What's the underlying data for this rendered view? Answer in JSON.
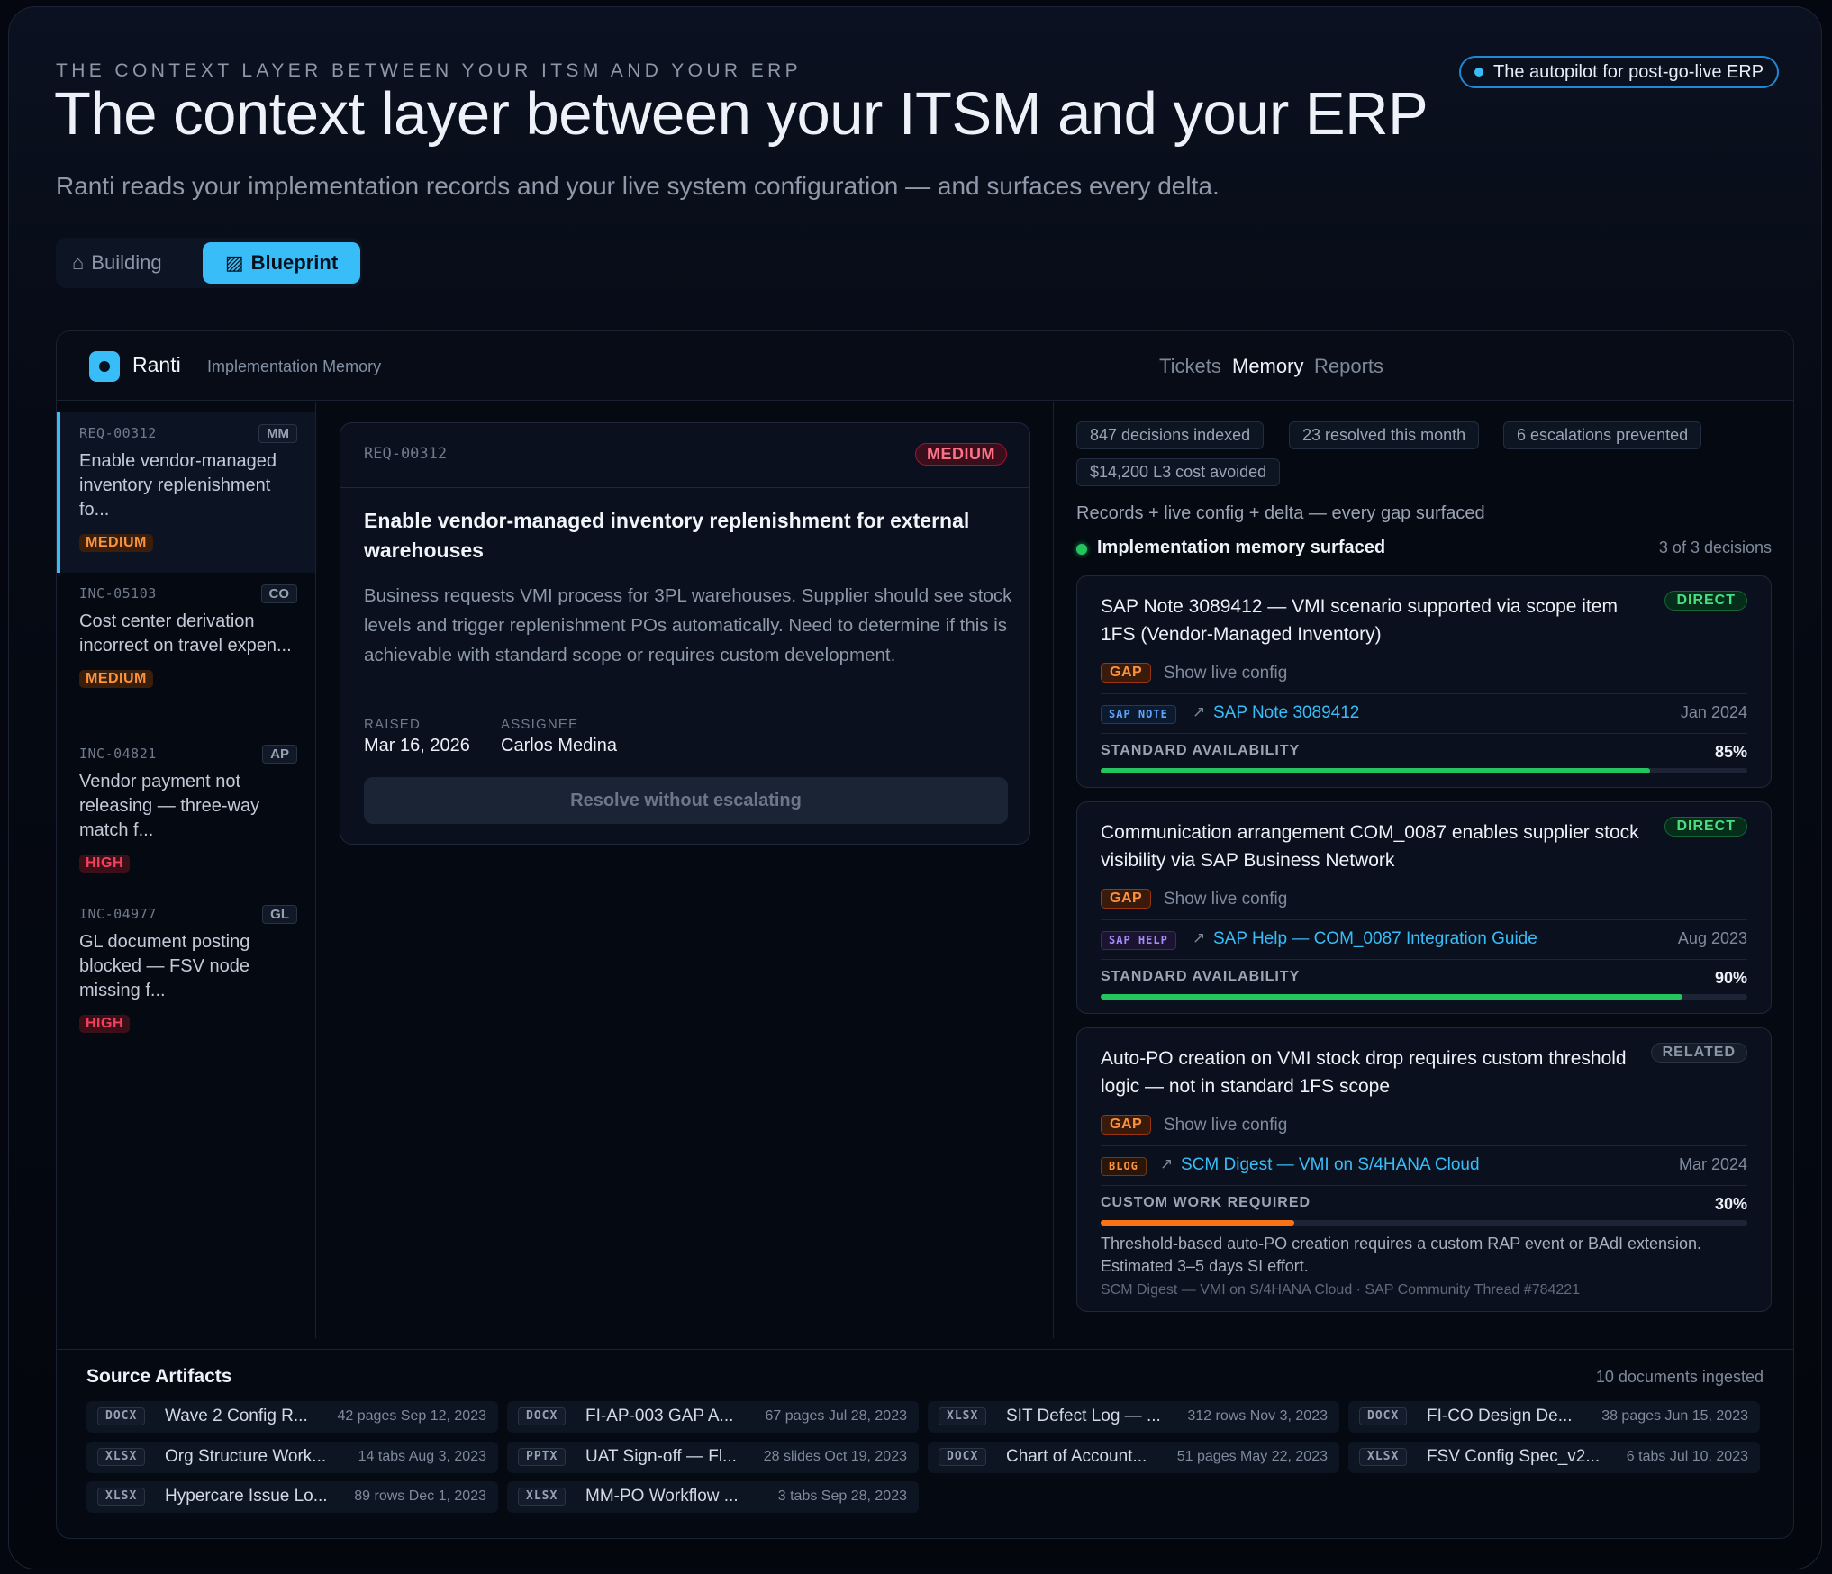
{
  "hero": {
    "eyebrow": "THE CONTEXT LAYER BETWEEN YOUR ITSM AND YOUR ERP",
    "title": "The context layer between your ITSM and your ERP",
    "subtitle": "Ranti reads your implementation records and your live system configuration — and surfaces every delta.",
    "pill": "The autopilot for post-go-live ERP"
  },
  "toggle": {
    "building_icon": "⌂",
    "building": "Building",
    "blueprint_icon": "▨",
    "blueprint": "Blueprint",
    "active": "Blueprint"
  },
  "app": {
    "brand": "Ranti",
    "section": "Implementation Memory",
    "nav": [
      "Tickets",
      "Memory",
      "Reports"
    ],
    "active_nav": "Memory"
  },
  "tickets": [
    {
      "id": "REQ-00312",
      "module": "MM",
      "title": "Enable vendor-managed inventory replenishment fo...",
      "priority": "MEDIUM",
      "selected": true
    },
    {
      "id": "INC-05103",
      "module": "CO",
      "title": "Cost center derivation incorrect on travel expen...",
      "priority": "MEDIUM",
      "selected": false
    },
    {
      "id": "INC-04821",
      "module": "AP",
      "title": "Vendor payment not releasing — three-way match f...",
      "priority": "HIGH",
      "selected": false
    },
    {
      "id": "INC-04977",
      "module": "GL",
      "title": "GL document posting blocked — FSV node missing f...",
      "priority": "HIGH",
      "selected": false
    }
  ],
  "detail": {
    "id": "REQ-00312",
    "priority": "MEDIUM",
    "title": "Enable vendor-managed inventory replenishment for external warehouses",
    "body": "Business requests VMI process for 3PL warehouses. Supplier should see stock levels and trigger replenishment POs automatically. Need to determine if this is achievable with standard scope or requires custom development.",
    "raised_label": "RAISED",
    "raised": "Mar 16, 2026",
    "assignee_label": "ASSIGNEE",
    "assignee": "Carlos Medina",
    "action": "Resolve without escalating"
  },
  "stats": [
    "847 decisions indexed",
    "23 resolved this month",
    "6 escalations prevented",
    "$14,200 L3 cost avoided"
  ],
  "memory": {
    "caption": "Records + live config + delta — every gap surfaced",
    "surfaced_label": "Implementation memory surfaced",
    "surfaced_count": "3 of 3 decisions",
    "cards": [
      {
        "title": "SAP Note 3089412 — VMI scenario supported via scope item 1FS (Vendor-Managed Inventory)",
        "tag": "DIRECT",
        "gap": "GAP",
        "show": "Show live config",
        "source_type": "SAP NOTE",
        "source": "SAP Note 3089412",
        "date": "Jan 2024",
        "avail_label": "STANDARD AVAILABILITY",
        "avail_text": "85%",
        "avail": 0.85
      },
      {
        "title": "Communication arrangement COM_0087 enables supplier stock visibility via SAP Business Network",
        "tag": "DIRECT",
        "gap": "GAP",
        "show": "Show live config",
        "source_type": "SAP HELP",
        "source": "SAP Help — COM_0087 Integration Guide",
        "date": "Aug 2023",
        "avail_label": "STANDARD AVAILABILITY",
        "avail_text": "90%",
        "avail": 0.9
      },
      {
        "title": "Auto-PO creation on VMI stock drop requires custom threshold logic — not in standard 1FS scope",
        "tag": "RELATED",
        "gap": "GAP",
        "show": "Show live config",
        "source_type": "BLOG",
        "source": "SCM Digest — VMI on S/4HANA Cloud",
        "date": "Mar 2024",
        "avail_label": "CUSTOM WORK REQUIRED",
        "avail_text": "30%",
        "avail": 0.3,
        "note": "Threshold-based auto-PO creation requires a custom RAP event or BAdI extension. Estimated 3–5 days SI effort.",
        "note_sources": "SCM Digest — VMI on S/4HANA Cloud · SAP Community Thread #784221"
      }
    ]
  },
  "artifacts": {
    "title": "Source Artifacts",
    "count": "10 documents ingested",
    "items": [
      {
        "type": "DOCX",
        "name": "Wave 2 Config R...",
        "meta": "42 pages  Sep 12, 2023"
      },
      {
        "type": "DOCX",
        "name": "FI-AP-003 GAP A...",
        "meta": "67 pages  Jul 28, 2023"
      },
      {
        "type": "XLSX",
        "name": "SIT Defect Log — ...",
        "meta": "312 rows  Nov 3, 2023"
      },
      {
        "type": "DOCX",
        "name": "FI-CO Design De...",
        "meta": "38 pages  Jun 15, 2023"
      },
      {
        "type": "XLSX",
        "name": "Org Structure Work...",
        "meta": "14 tabs  Aug 3, 2023"
      },
      {
        "type": "PPTX",
        "name": "UAT Sign-off — Fl...",
        "meta": "28 slides  Oct 19, 2023"
      },
      {
        "type": "DOCX",
        "name": "Chart of Account...",
        "meta": "51 pages  May 22, 2023"
      },
      {
        "type": "XLSX",
        "name": "FSV Config Spec_v2...",
        "meta": "6 tabs  Jul 10, 2023"
      },
      {
        "type": "XLSX",
        "name": "Hypercare Issue Lo...",
        "meta": "89 rows  Dec 1, 2023"
      },
      {
        "type": "XLSX",
        "name": "MM-PO Workflow ...",
        "meta": "3 tabs  Sep 28, 2023"
      }
    ]
  },
  "colors": {
    "accent": "#38bdf8",
    "green": "#22c55e",
    "orange": "#f97316",
    "red": "#f43f5e"
  }
}
